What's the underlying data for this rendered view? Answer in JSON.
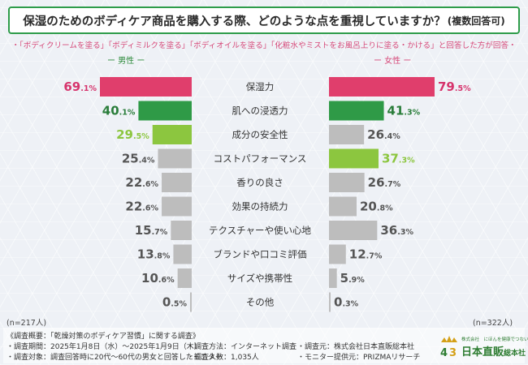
{
  "header": {
    "title": "保湿のためのボディケア商品を購入する際、どのような点を重視していますか？",
    "title_sub": "(複数回答可)",
    "condition": "・「ボディクリームを塗る」「ボディミルクを塗る」「ボディオイルを塗る」「化粧水やミストをお風呂上りに塗る・かける」と回答した方が回答・",
    "male_label": "ー 男性 ー",
    "female_label": "ー 女性 ー"
  },
  "colors": {
    "rank1": "#e03e6c",
    "rank2": "#2f9a47",
    "rank3": "#8cc63f",
    "other": "#bdbdbd",
    "text_rank1": "#d6336c",
    "text_rank2": "#2a7d3a",
    "text_rank3": "#8cc63f",
    "text_other": "#555555"
  },
  "chart_data": {
    "type": "bar",
    "orientation": "horizontal-butterfly",
    "title": "保湿のためのボディケア商品を購入する際、どのような点を重視していますか？(複数回答可)",
    "unit": "%",
    "categories": [
      "保湿力",
      "肌への浸透力",
      "成分の安全性",
      "コストパフォーマンス",
      "香りの良さ",
      "効果の持続力",
      "テクスチャーや使い心地",
      "ブランドや口コミ評価",
      "サイズや携帯性",
      "その他"
    ],
    "series": [
      {
        "name": "男性",
        "values": [
          69.1,
          40.1,
          29.5,
          25.4,
          22.6,
          22.6,
          15.7,
          13.8,
          10.6,
          0.5
        ],
        "ranks": [
          1,
          2,
          3,
          0,
          0,
          0,
          0,
          0,
          0,
          0
        ],
        "n": "(n=217人)"
      },
      {
        "name": "女性",
        "values": [
          79.5,
          41.3,
          26.4,
          37.3,
          26.7,
          20.8,
          36.3,
          12.7,
          5.9,
          0.3
        ],
        "ranks": [
          1,
          2,
          0,
          3,
          0,
          0,
          0,
          0,
          0,
          0
        ],
        "n": "(n=322人)"
      }
    ],
    "xlim": [
      0,
      100
    ],
    "legend": "top"
  },
  "survey": {
    "heading": "《調査概要：「乾燥対策のボディケア習慣」に関する調査》",
    "period": "・調査期間：2025年1月8日（水）〜2025年1月9日（木）",
    "method": "・調査方法：インターネット調査",
    "source": "・調査元：株式会社日本直販総本社",
    "target": "・調査対象：調査回答時に20代〜60代の男女と回答したモニター",
    "count": "・調査人数：1,035人",
    "provider": "・モニター提供元：PRIZMAリサーチ"
  },
  "logo": {
    "small_text": "株式会社　にほんを健康でつないでいく",
    "name": "日本直販",
    "tag": "総本社"
  }
}
